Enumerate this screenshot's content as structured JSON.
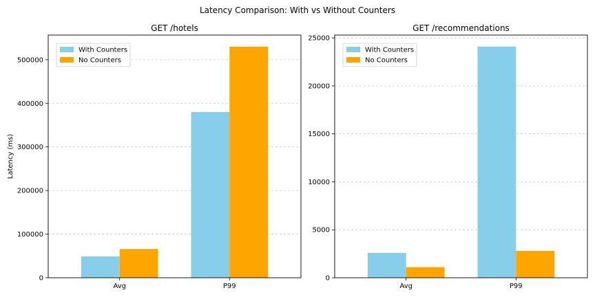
{
  "figure": {
    "suptitle": "Latency Comparison: With vs Without Counters"
  },
  "chart_data": [
    {
      "type": "bar",
      "title": "GET /hotels",
      "xlabel": "",
      "ylabel": "Latency (ms)",
      "categories": [
        "Avg",
        "P99"
      ],
      "series": [
        {
          "name": "With Counters",
          "color": "#87CEEB",
          "values": [
            49000,
            380000
          ]
        },
        {
          "name": "No Counters",
          "color": "#FFA500",
          "values": [
            66000,
            530000
          ]
        }
      ],
      "ylim": [
        0,
        556500
      ],
      "yticks": [
        0,
        100000,
        200000,
        300000,
        400000,
        500000
      ],
      "grid": "y-dashed",
      "legend": "top-left"
    },
    {
      "type": "bar",
      "title": "GET /recommendations",
      "xlabel": "",
      "ylabel": "",
      "categories": [
        "Avg",
        "P99"
      ],
      "series": [
        {
          "name": "With Counters",
          "color": "#87CEEB",
          "values": [
            2600,
            24100
          ]
        },
        {
          "name": "No Counters",
          "color": "#FFA500",
          "values": [
            1100,
            2800
          ]
        }
      ],
      "ylim": [
        0,
        25300
      ],
      "yticks": [
        0,
        5000,
        10000,
        15000,
        20000,
        25000
      ],
      "grid": "y-dashed",
      "legend": "top-left"
    }
  ]
}
